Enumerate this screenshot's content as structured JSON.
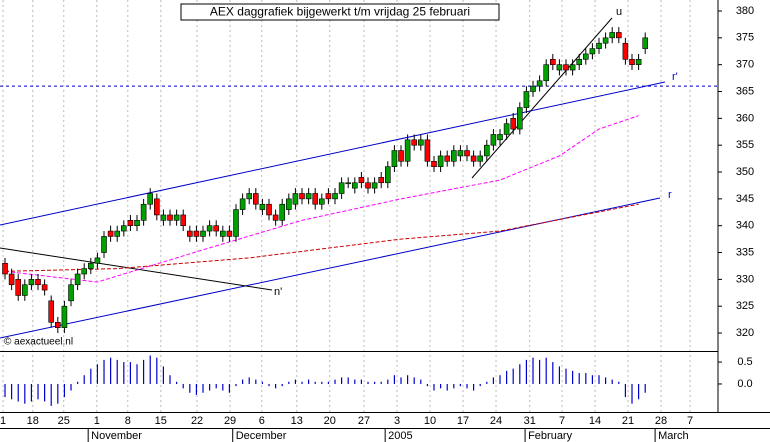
{
  "chart_data": {
    "type": "candlestick",
    "title": "AEX daggrafiek bijgewerkt t/m vrijdag 25 februari",
    "credit": "© aexactueel.nl",
    "up_color": "#00a000",
    "down_color": "#ff0000",
    "open": [
      333,
      331,
      330,
      327,
      329,
      330,
      329,
      326,
      322,
      321,
      326,
      329,
      331,
      332,
      333,
      335,
      339,
      338,
      339,
      341,
      340,
      341,
      344,
      345,
      341,
      342,
      341,
      342,
      339,
      339,
      338,
      339,
      340,
      338,
      339,
      338,
      343,
      345,
      346,
      343,
      344,
      342,
      341,
      343,
      344,
      346,
      345,
      346,
      344,
      346,
      345,
      346,
      348,
      347,
      349,
      348,
      347,
      349,
      348,
      351,
      354,
      352,
      356,
      355,
      356,
      352,
      351,
      353,
      352,
      353,
      354,
      353,
      352,
      353,
      355,
      356,
      357,
      360,
      358,
      362,
      365,
      366,
      367,
      371,
      369,
      370,
      369,
      370,
      371,
      372,
      373,
      374,
      375,
      376,
      374,
      371,
      370,
      373
    ],
    "high": [
      334,
      332,
      331,
      330,
      331,
      331,
      330,
      327,
      323,
      326,
      330,
      332,
      333,
      334,
      335,
      339,
      340,
      340,
      341,
      342,
      342,
      345,
      347,
      346,
      343,
      343,
      343,
      343,
      340,
      340,
      340,
      341,
      341,
      340,
      340,
      344,
      346,
      347,
      347,
      345,
      345,
      343,
      345,
      346,
      347,
      347,
      347,
      347,
      346,
      347,
      347,
      349,
      349,
      349,
      350,
      349,
      349,
      350,
      352,
      355,
      355,
      357,
      357,
      357,
      357,
      353,
      354,
      354,
      355,
      355,
      355,
      354,
      354,
      356,
      358,
      358,
      360,
      361,
      363,
      366,
      367,
      368,
      371,
      372,
      371,
      371,
      371,
      372,
      373,
      374,
      375,
      376,
      377,
      377,
      375,
      372,
      372,
      376
    ],
    "low": [
      330,
      328,
      326,
      326,
      328,
      328,
      327,
      321,
      320,
      320,
      325,
      328,
      330,
      331,
      332,
      334,
      337,
      337,
      338,
      339,
      339,
      340,
      343,
      341,
      340,
      340,
      340,
      339,
      337,
      337,
      337,
      338,
      338,
      337,
      337,
      337,
      342,
      344,
      343,
      342,
      341,
      340,
      340,
      342,
      343,
      344,
      344,
      343,
      343,
      344,
      344,
      345,
      347,
      346,
      347,
      346,
      346,
      347,
      347,
      350,
      351,
      351,
      354,
      354,
      351,
      350,
      350,
      351,
      351,
      352,
      352,
      351,
      351,
      352,
      354,
      355,
      356,
      357,
      357,
      361,
      364,
      365,
      366,
      369,
      368,
      368,
      368,
      369,
      370,
      371,
      372,
      373,
      374,
      374,
      370,
      369,
      369,
      372
    ],
    "close": [
      331,
      329,
      327,
      329,
      330,
      329,
      328,
      322,
      321,
      325,
      329,
      331,
      332,
      333,
      334,
      338,
      338,
      339,
      340,
      340,
      341,
      344,
      346,
      342,
      342,
      341,
      342,
      340,
      338,
      338,
      339,
      340,
      339,
      339,
      338,
      343,
      345,
      346,
      344,
      344,
      342,
      341,
      344,
      345,
      346,
      345,
      346,
      344,
      345,
      345,
      346,
      348,
      348,
      348,
      348,
      347,
      348,
      348,
      351,
      354,
      352,
      356,
      355,
      356,
      352,
      351,
      353,
      352,
      354,
      354,
      353,
      352,
      353,
      355,
      357,
      357,
      359,
      358,
      362,
      365,
      366,
      367,
      370,
      370,
      370,
      369,
      370,
      371,
      372,
      373,
      374,
      375,
      376,
      375,
      371,
      370,
      371,
      375
    ],
    "moving_averages": [
      {
        "color": "#ff00ff",
        "x": [
          0,
          14,
          30,
          45,
          60,
          75,
          84,
          90,
          96
        ],
        "values": [
          331.5,
          329.5,
          335.5,
          341,
          345,
          348.5,
          353,
          358,
          360.5
        ]
      },
      {
        "color": "#cc0000",
        "x": [
          0,
          17,
          37,
          60,
          75,
          96
        ],
        "values": [
          331.5,
          332,
          334,
          337.5,
          339,
          344
        ]
      }
    ],
    "level": 366,
    "trend_labels": [
      "u",
      "r'",
      "r",
      "n'"
    ],
    "xlim": [
      -0.76,
      108.03
    ],
    "ylim": [
      316.84,
      382.05
    ],
    "yticks": [
      320,
      325,
      330,
      335,
      340,
      345,
      350,
      355,
      360,
      365,
      370,
      375,
      380
    ],
    "xticks": [
      {
        "value": -0.3,
        "label": "1"
      },
      {
        "value": 4.2,
        "label": "18"
      },
      {
        "value": 8.9,
        "label": "25"
      },
      {
        "value": 13.9,
        "label": "1"
      },
      {
        "value": 18.6,
        "label": "8"
      },
      {
        "value": 23.6,
        "label": "15"
      },
      {
        "value": 29.1,
        "label": "22"
      },
      {
        "value": 34.1,
        "label": "29"
      },
      {
        "value": 38.9,
        "label": "6"
      },
      {
        "value": 44.2,
        "label": "13"
      },
      {
        "value": 49.2,
        "label": "20"
      },
      {
        "value": 54.4,
        "label": "27"
      },
      {
        "value": 59.4,
        "label": "3"
      },
      {
        "value": 64.4,
        "label": "10"
      },
      {
        "value": 69.4,
        "label": "17"
      },
      {
        "value": 74.4,
        "label": "24"
      },
      {
        "value": 79.5,
        "label": "31"
      },
      {
        "value": 84.4,
        "label": "7"
      },
      {
        "value": 89.4,
        "label": "14"
      },
      {
        "value": 94.4,
        "label": "21"
      },
      {
        "value": 99.4,
        "label": "28"
      },
      {
        "value": 103.8,
        "label": "7"
      }
    ],
    "months": [
      {
        "value": 12.6,
        "label": "November"
      },
      {
        "value": 34.5,
        "label": "December"
      },
      {
        "value": 57.6,
        "label": "2005"
      },
      {
        "value": 78.8,
        "label": "February"
      },
      {
        "value": 98.5,
        "label": "March"
      }
    ],
    "oscillator": {
      "color": "#0000cc",
      "ylim": [
        -0.64,
        0.73
      ],
      "yticks": [
        0.5,
        {
          "value": 0,
          "label": "0.0"
        }
      ],
      "values": [
        -0.3,
        -0.35,
        -0.4,
        -0.45,
        -0.4,
        -0.35,
        -0.4,
        -0.5,
        -0.45,
        -0.3,
        -0.15,
        0.05,
        0.2,
        0.35,
        0.45,
        0.55,
        0.6,
        0.55,
        0.5,
        0.5,
        0.45,
        0.55,
        0.65,
        0.6,
        0.4,
        0.2,
        0.05,
        -0.1,
        -0.2,
        -0.25,
        -0.2,
        -0.15,
        -0.1,
        -0.15,
        -0.2,
        -0.05,
        0.1,
        0.15,
        0.1,
        0.05,
        -0.05,
        -0.1,
        -0.05,
        0.05,
        0.1,
        0.05,
        0.1,
        0.05,
        0.05,
        0.05,
        0.1,
        0.15,
        0.15,
        0.1,
        0.1,
        0.05,
        0.05,
        0.05,
        0.1,
        0.2,
        0.15,
        0.2,
        0.15,
        0.1,
        -0.05,
        -0.15,
        -0.1,
        -0.15,
        -0.1,
        -0.05,
        -0.1,
        -0.15,
        -0.05,
        0.05,
        0.15,
        0.2,
        0.3,
        0.35,
        0.45,
        0.55,
        0.6,
        0.55,
        0.6,
        0.5,
        0.4,
        0.35,
        0.3,
        0.25,
        0.25,
        0.2,
        0.2,
        0.15,
        0.1,
        0.05,
        -0.3,
        -0.45,
        -0.35,
        -0.2
      ]
    }
  }
}
